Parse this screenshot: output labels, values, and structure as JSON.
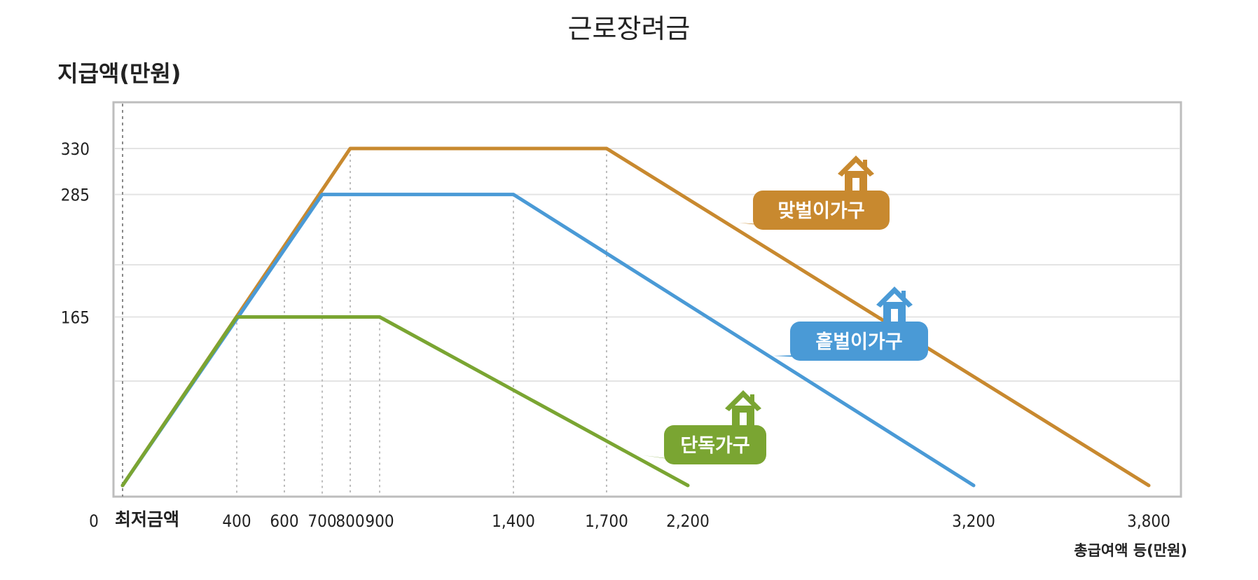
{
  "chart_data": {
    "type": "line",
    "title": "근로장려금",
    "ylabel": "지급액(만원)",
    "xlabel": "총급여액 등(만원)",
    "x_ticks": [
      0,
      400,
      600,
      700,
      800,
      900,
      1400,
      1700,
      2200,
      3200,
      3800
    ],
    "x_tick_labels": [
      "0",
      "400",
      "600",
      "700",
      "800",
      "900",
      "1,400",
      "1,700",
      "2,200",
      "3,200",
      "3,800"
    ],
    "min_label": "최저금액",
    "y_ticks": [
      165,
      285,
      330
    ],
    "y_tick_labels": [
      "165",
      "285",
      "330"
    ],
    "ylim": [
      0,
      380
    ],
    "xlim": [
      0,
      3800
    ],
    "grid": true,
    "series": [
      {
        "name": "맞벌이가구",
        "color": "#c8892f",
        "x": [
          0,
          800,
          1700,
          3800
        ],
        "y": [
          0,
          330,
          330,
          0
        ]
      },
      {
        "name": "홑벌이가구",
        "color": "#4a9ad6",
        "x": [
          0,
          700,
          1400,
          3200
        ],
        "y": [
          0,
          285,
          285,
          0
        ]
      },
      {
        "name": "단독가구",
        "color": "#7aa532",
        "x": [
          0,
          400,
          900,
          2200
        ],
        "y": [
          0,
          165,
          165,
          0
        ]
      }
    ]
  }
}
